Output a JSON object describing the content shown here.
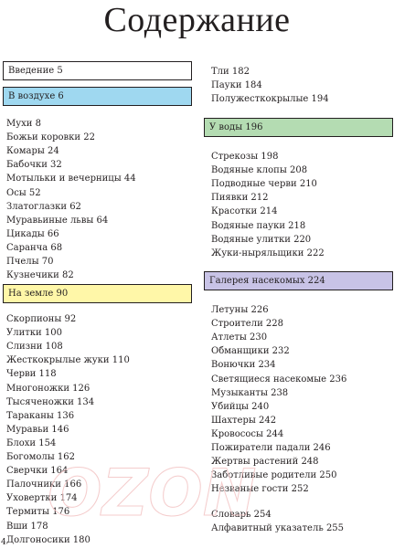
{
  "title": "Содержание",
  "page_number": "4",
  "watermark": "OZON",
  "colors": {
    "yellow_header": "#fff7a8",
    "blue_header": "#9fd8f0",
    "green_header": "#b4dcb2",
    "purple_header": "#c8c3e6",
    "border": "#231f20"
  },
  "left_column": {
    "intro": "Введение 5",
    "sections": [
      {
        "header": "В воздухе 6",
        "color": "blue",
        "items": [
          "Мухи 8",
          "Божьи коровки 22",
          "Комары 24",
          "Бабочки 32",
          "Мотыльки и вечерницы 44",
          "Осы 52",
          "Златоглазки 62",
          "Муравьиные львы 64",
          "Цикады 66",
          "Саранча 68",
          "Пчелы 70",
          "Кузнечики 82"
        ]
      },
      {
        "header": "На земле 90",
        "color": "yellow",
        "items": [
          "Скорпионы 92",
          "Улитки 100",
          "Слизни 108",
          "Жесткокрылые жуки 110",
          "Черви 118",
          "Многоножки 126",
          "Тысяченожки 134",
          "Тараканы 136",
          "Муравьи 146",
          "Блохи 154",
          "Богомолы 162",
          "Сверчки 164",
          "Палочники 166",
          "Уховертки 174",
          "Термиты 176",
          "Вши 178",
          "Долгоносики 180"
        ]
      }
    ]
  },
  "right_column": {
    "top_items": [
      "Тли 182",
      "Пауки 184",
      "Полужесткокрылые 194"
    ],
    "sections": [
      {
        "header": "У воды 196",
        "color": "green",
        "items": [
          "Стрекозы 198",
          "Водяные клопы 208",
          "Подводные черви 210",
          "Пиявки 212",
          "Красотки 214",
          "Водяные пауки 218",
          "Водяные улитки 220",
          "Жуки-ныряльщики 222"
        ]
      },
      {
        "header": "Галерея насекомых 224",
        "color": "purple",
        "items": [
          "Летуны 226",
          "Строители 228",
          "Атлеты 230",
          "Обманщики 232",
          "Вонючки 234",
          "Светящиеся насекомые 236",
          "Музыканты 238",
          "Убийцы 240",
          "Шахтеры 242",
          "Кровососы 244",
          "Пожиратели падали 246",
          "Жертвы растений 248",
          "Заботливые родители 250",
          "Незваные гости 252"
        ]
      }
    ],
    "end_items": [
      "Словарь 254",
      "Алфавитный указатель 255"
    ]
  }
}
